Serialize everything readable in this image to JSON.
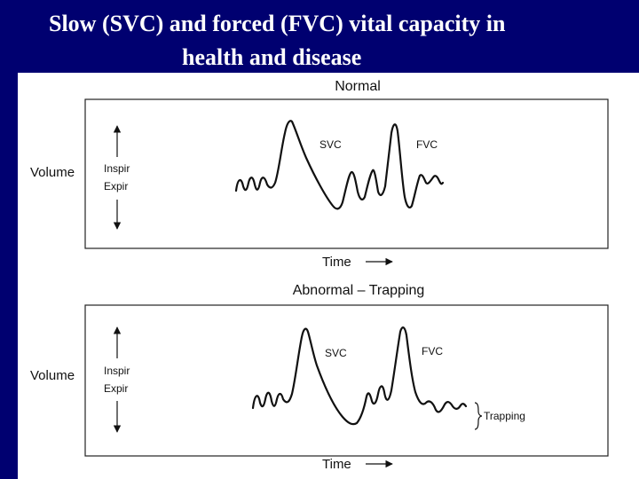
{
  "slide": {
    "title_line1": "Slow (SVC) and forced (FVC) vital capacity in",
    "title_line2": "health and disease"
  },
  "panels": [
    {
      "heading": "Normal",
      "y_label": "Volume",
      "inspir_label": "Inspir",
      "expir_label": "Expir",
      "svc_label": "SVC",
      "fvc_label": "FVC",
      "x_label": "Time"
    },
    {
      "heading": "Abnormal – Trapping",
      "y_label": "Volume",
      "inspir_label": "Inspir",
      "expir_label": "Expir",
      "svc_label": "SVC",
      "fvc_label": "FVC",
      "x_label": "Time",
      "annotation": "Trapping"
    }
  ]
}
